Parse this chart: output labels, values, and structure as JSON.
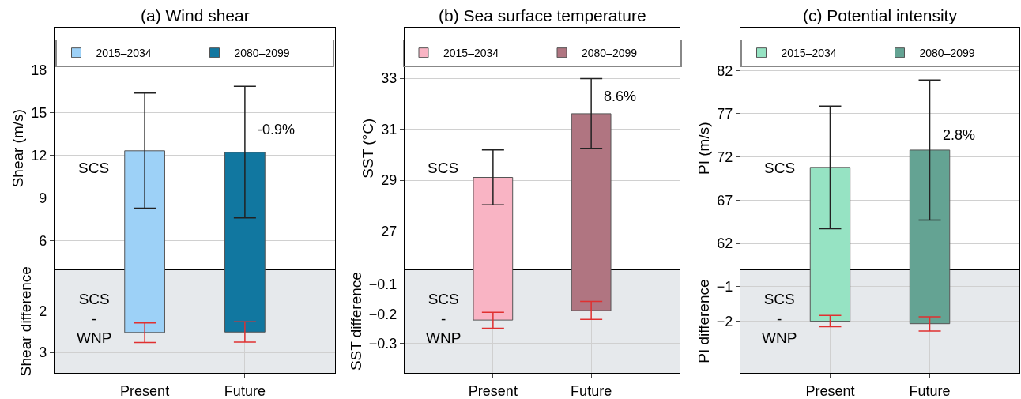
{
  "chart_data": [
    {
      "type": "bar",
      "title": "(a) Wind shear",
      "ylabel": "Shear (m/s)",
      "categories": [
        "Present",
        "Future"
      ],
      "ylim": [
        4,
        21
      ],
      "yticks": [
        6,
        9,
        12,
        15,
        18
      ],
      "grid": true,
      "legend": "top",
      "tick_labels": "y",
      "series": [
        {
          "name": "2015–2034",
          "color": "#9dd1f7",
          "values": [
            12.33,
            null
          ],
          "errors": [
            [
              8.29,
              16.39
            ],
            null
          ]
        },
        {
          "name": "2080–2099",
          "color": "#1177a0",
          "values": [
            null,
            12.22
          ],
          "errors": [
            null,
            [
              7.61,
              16.85
            ]
          ]
        }
      ],
      "annotations": [
        "SCS",
        {
          "text": "-0.9%",
          "x": "Future",
          "y": 13.8
        }
      ]
    },
    {
      "type": "bar",
      "ylabel": "Shear difference",
      "categories": [
        "Present",
        "Future"
      ],
      "ylim": [
        3.5,
        1
      ],
      "yticks": [
        2,
        3
      ],
      "grid": true,
      "series": [
        {
          "color": "#9dd1f7",
          "values": [
            2.52,
            null
          ],
          "errors": [
            [
              2.29,
              2.76
            ],
            null
          ]
        },
        {
          "color": "#1177a0",
          "values": [
            null,
            2.51
          ],
          "errors": [
            null,
            [
              2.26,
              2.75
            ]
          ]
        }
      ],
      "bands": [
        {
          "axis": "y",
          "from": 3.5,
          "to": 1,
          "color": "#e6e9ec"
        }
      ],
      "annotations": [
        "SCS\n-\nWNP"
      ]
    },
    {
      "type": "bar",
      "title": "(b) Sea surface temperature",
      "ylabel": "SST (°C)",
      "categories": [
        "Present",
        "Future"
      ],
      "ylim": [
        25.5,
        35
      ],
      "yticks": [
        27,
        29,
        31,
        33
      ],
      "grid": true,
      "legend": "top",
      "tick_labels": "y",
      "series": [
        {
          "name": "2015–2034",
          "color": "#f9b4c4",
          "values": [
            29.11,
            null
          ],
          "errors": [
            [
              28.03,
              30.19
            ],
            null
          ]
        },
        {
          "name": "2080–2099",
          "color": "#b07581",
          "values": [
            null,
            31.61
          ],
          "errors": [
            null,
            [
              30.25,
              32.99
            ]
          ]
        }
      ],
      "annotations": [
        "SCS",
        {
          "text": "8.6%",
          "x": "Future",
          "y": 32.3
        }
      ]
    },
    {
      "type": "bar",
      "ylabel": "SST difference",
      "categories": [
        "Present",
        "Future"
      ],
      "ylim": [
        -0.4,
        -0.05
      ],
      "yticks": [
        -0.1,
        -0.2,
        -0.3
      ],
      "grid": true,
      "series": [
        {
          "color": "#f9b4c4",
          "values": [
            -0.221,
            null
          ],
          "errors": [
            [
              -0.249,
              -0.195
            ],
            null
          ]
        },
        {
          "color": "#b07581",
          "values": [
            null,
            -0.189
          ],
          "errors": [
            null,
            [
              -0.219,
              -0.158
            ]
          ]
        }
      ],
      "bands": [
        {
          "axis": "y",
          "from": -0.4,
          "to": -0.05,
          "color": "#e6e9ec"
        }
      ],
      "annotations": [
        "SCS\n-\nWNP"
      ]
    },
    {
      "type": "bar",
      "title": "(c) Potential intensity",
      "ylabel": "PI (m/s)",
      "categories": [
        "Present",
        "Future"
      ],
      "ylim": [
        59,
        87
      ],
      "yticks": [
        62,
        67,
        72,
        77,
        82
      ],
      "grid": true,
      "legend": "top",
      "tick_labels": "y",
      "series": [
        {
          "name": "2015–2034",
          "color": "#96e3c3",
          "values": [
            70.8,
            null
          ],
          "errors": [
            [
              63.7,
              77.9
            ],
            null
          ]
        },
        {
          "name": "2080–2099",
          "color": "#64a393",
          "values": [
            null,
            72.8
          ],
          "errors": [
            null,
            [
              64.7,
              80.9
            ]
          ]
        }
      ],
      "annotations": [
        "SCS",
        {
          "text": "2.8%",
          "x": "Future",
          "y": 74.5
        }
      ]
    },
    {
      "type": "bar",
      "ylabel": "PI difference",
      "categories": [
        "Present",
        "Future"
      ],
      "ylim": [
        -3.5,
        -0.5
      ],
      "yticks": [
        -1,
        -2
      ],
      "grid": true,
      "series": [
        {
          "color": "#96e3c3",
          "values": [
            -2.0,
            null
          ],
          "errors": [
            [
              -2.16,
              -1.83
            ],
            null
          ]
        },
        {
          "color": "#64a393",
          "values": [
            null,
            -2.07
          ],
          "errors": [
            null,
            [
              -2.28,
              -1.87
            ]
          ]
        }
      ],
      "bands": [
        {
          "axis": "y",
          "from": -3.5,
          "to": -0.5,
          "color": "#e6e9ec"
        }
      ],
      "annotations": [
        "SCS\n-\nWNP"
      ]
    }
  ]
}
